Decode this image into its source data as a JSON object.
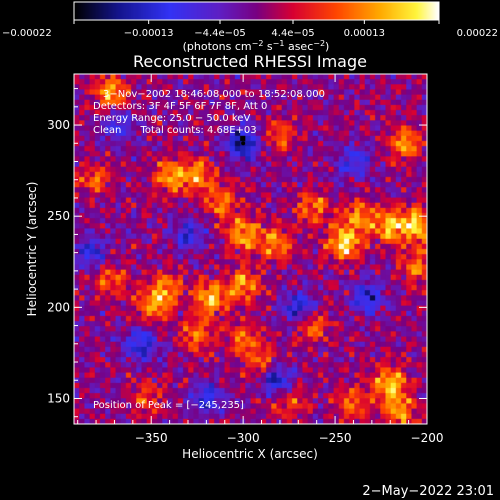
{
  "chart_data": {
    "type": "heatmap",
    "title": "Reconstructed RHESSI Image",
    "xlabel": "Heliocentric X (arcsec)",
    "ylabel": "Heliocentric Y (arcsec)",
    "xlim": [
      -392,
      -200
    ],
    "ylim": [
      136,
      328
    ],
    "x_ticks": [
      -350,
      -300,
      -250,
      -200
    ],
    "x_tick_labels": [
      "−350",
      "−300",
      "−250",
      "−200"
    ],
    "y_ticks": [
      150,
      200,
      250,
      300
    ],
    "y_tick_labels": [
      "150",
      "200",
      "250",
      "300"
    ],
    "colorbar": {
      "range": [
        -0.00022,
        0.00022
      ],
      "ticks": [
        -0.00022,
        -0.00013,
        -4.4e-05,
        4.4e-05,
        0.00013,
        0.00022
      ],
      "tick_labels": [
        "−0.00022",
        "−0.00013",
        "−4.4e−05",
        "4.4e−05",
        "0.00013",
        "0.00022"
      ],
      "unit_prefix": "(photons cm",
      "unit_sup1": "−2",
      "unit_mid1": " s",
      "unit_sup2": "−1",
      "unit_mid2": " asec",
      "unit_sup3": "−2",
      "unit_suffix": ")"
    },
    "annotations": [
      "3−Nov−2002 18:46:08.000 to 18:52:08.000",
      "Detectors: 3F 4F 5F 6F 7F 8F, Att 0",
      "Energy Range: 25.0 − 50.0 keV",
      "Clean      Total counts: 4.68E+03"
    ],
    "peak_label": "Position of Peak = [−245,235]",
    "peak": [
      -245,
      235
    ],
    "hotspots": [
      {
        "x": -372,
        "y": 318,
        "value": 0.00018
      },
      {
        "x": -340,
        "y": 272,
        "value": 0.00017
      },
      {
        "x": -325,
        "y": 272,
        "value": 0.00016
      },
      {
        "x": -312,
        "y": 258,
        "value": 0.00014
      },
      {
        "x": -300,
        "y": 240,
        "value": 0.00018
      },
      {
        "x": -282,
        "y": 235,
        "value": 0.00016
      },
      {
        "x": -262,
        "y": 255,
        "value": 0.00014
      },
      {
        "x": -245,
        "y": 235,
        "value": 0.00022
      },
      {
        "x": -238,
        "y": 250,
        "value": 0.00015
      },
      {
        "x": -220,
        "y": 245,
        "value": 0.00019
      },
      {
        "x": -205,
        "y": 245,
        "value": 0.0002
      },
      {
        "x": -212,
        "y": 290,
        "value": 0.00016
      },
      {
        "x": -205,
        "y": 222,
        "value": 0.00014
      },
      {
        "x": -318,
        "y": 205,
        "value": 0.00019
      },
      {
        "x": -300,
        "y": 212,
        "value": 0.00017
      },
      {
        "x": -342,
        "y": 210,
        "value": 0.00016
      },
      {
        "x": -350,
        "y": 200,
        "value": 0.00015
      },
      {
        "x": -372,
        "y": 215,
        "value": 0.00013
      },
      {
        "x": -325,
        "y": 185,
        "value": 0.00014
      },
      {
        "x": -300,
        "y": 182,
        "value": 0.00012
      },
      {
        "x": -290,
        "y": 170,
        "value": 0.00012
      },
      {
        "x": -262,
        "y": 190,
        "value": 0.00013
      },
      {
        "x": -220,
        "y": 158,
        "value": 0.00019
      },
      {
        "x": -215,
        "y": 143,
        "value": 0.00016
      },
      {
        "x": -240,
        "y": 148,
        "value": 0.00013
      },
      {
        "x": -275,
        "y": 148,
        "value": 0.00012
      },
      {
        "x": -352,
        "y": 150,
        "value": 0.00011
      },
      {
        "x": -380,
        "y": 270,
        "value": 0.00012
      },
      {
        "x": -280,
        "y": 295,
        "value": 0.00011
      }
    ],
    "coldspots": [
      {
        "x": -300,
        "y": 290,
        "value": -0.00022
      },
      {
        "x": -282,
        "y": 160,
        "value": -0.00018
      },
      {
        "x": -270,
        "y": 200,
        "value": -0.00016
      },
      {
        "x": -232,
        "y": 205,
        "value": -0.00016
      },
      {
        "x": -355,
        "y": 180,
        "value": -0.00016
      },
      {
        "x": -382,
        "y": 230,
        "value": -0.00014
      },
      {
        "x": -368,
        "y": 300,
        "value": -0.00012
      },
      {
        "x": -240,
        "y": 280,
        "value": -0.00012
      },
      {
        "x": -330,
        "y": 240,
        "value": -0.00012
      },
      {
        "x": -320,
        "y": 150,
        "value": -0.00014
      }
    ]
  },
  "footer": {
    "date": "2−May−2022 23:01"
  }
}
